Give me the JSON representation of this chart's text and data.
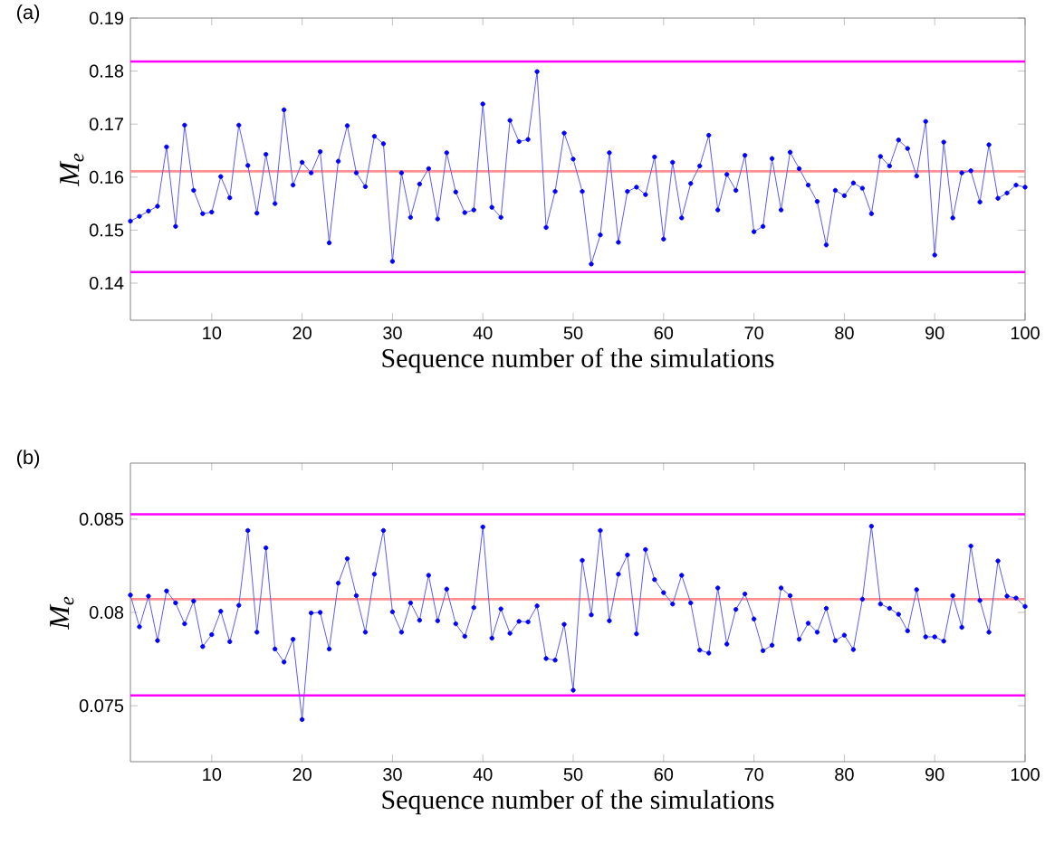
{
  "chart_data": [
    {
      "type": "line",
      "title": "(a)",
      "xlabel": "Sequence number of the simulations",
      "ylabel": "M$_{e}$",
      "marker": "circle",
      "line_style": "solid",
      "grid": false,
      "x": [
        1,
        2,
        3,
        4,
        5,
        6,
        7,
        8,
        9,
        10,
        11,
        12,
        13,
        14,
        15,
        16,
        17,
        18,
        19,
        20,
        21,
        22,
        23,
        24,
        25,
        26,
        27,
        28,
        29,
        30,
        31,
        32,
        33,
        34,
        35,
        36,
        37,
        38,
        39,
        40,
        41,
        42,
        43,
        44,
        45,
        46,
        47,
        48,
        49,
        50,
        51,
        52,
        53,
        54,
        55,
        56,
        57,
        58,
        59,
        60,
        61,
        62,
        63,
        64,
        65,
        66,
        67,
        68,
        69,
        70,
        71,
        72,
        73,
        74,
        75,
        76,
        77,
        78,
        79,
        80,
        81,
        82,
        83,
        84,
        85,
        86,
        87,
        88,
        89,
        90,
        91,
        92,
        93,
        94,
        95,
        96,
        97,
        98,
        99,
        100
      ],
      "series": [
        {
          "color": "#0000ff",
          "values": [
            0.1517,
            0.1526,
            0.1536,
            0.1545,
            0.1657,
            0.1507,
            0.1698,
            0.1575,
            0.1531,
            0.1534,
            0.1601,
            0.1561,
            0.1698,
            0.1622,
            0.1532,
            0.1643,
            0.155,
            0.1727,
            0.1585,
            0.1628,
            0.1608,
            0.1648,
            0.1476,
            0.163,
            0.1697,
            0.1608,
            0.1582,
            0.1677,
            0.1663,
            0.1441,
            0.1608,
            0.1524,
            0.1587,
            0.1616,
            0.1521,
            0.1646,
            0.1572,
            0.1533,
            0.1538,
            0.1738,
            0.1543,
            0.1524,
            0.1707,
            0.1667,
            0.1671,
            0.1799,
            0.1505,
            0.1573,
            0.1683,
            0.1634,
            0.1573,
            0.1436,
            0.1491,
            0.1646,
            0.1477,
            0.1573,
            0.1581,
            0.1567,
            0.1638,
            0.1483,
            0.1628,
            0.1523,
            0.1588,
            0.1621,
            0.1679,
            0.1538,
            0.1605,
            0.1575,
            0.1641,
            0.1497,
            0.1507,
            0.1635,
            0.1538,
            0.1647,
            0.1616,
            0.1585,
            0.1554,
            0.1472,
            0.1575,
            0.1565,
            0.1589,
            0.1579,
            0.1531,
            0.1639,
            0.1621,
            0.167,
            0.1654,
            0.1602,
            0.1705,
            0.1453,
            0.1666,
            0.1523,
            0.1608,
            0.1612,
            0.1553,
            0.1661,
            0.156,
            0.157,
            0.1585,
            0.1581
          ]
        }
      ],
      "ref_lines": [
        {
          "axis": "y",
          "value": 0.1818,
          "color": "#ff00ff"
        },
        {
          "axis": "y",
          "value": 0.1611,
          "color": "#ff9090"
        },
        {
          "axis": "y",
          "value": 0.1421,
          "color": "#ff00ff"
        }
      ],
      "xlim": [
        1,
        100
      ],
      "xticks": [
        10,
        20,
        30,
        40,
        50,
        60,
        70,
        80,
        90,
        100
      ],
      "ylim": [
        0.133,
        0.19
      ],
      "yticks": [
        0.14,
        0.15,
        0.16,
        0.17,
        0.18,
        0.19
      ]
    },
    {
      "type": "line",
      "title": "(b)",
      "xlabel": "Sequence number of the simulations",
      "ylabel": "M$_{e}$",
      "marker": "circle",
      "line_style": "solid",
      "grid": false,
      "x": [
        1,
        2,
        3,
        4,
        5,
        6,
        7,
        8,
        9,
        10,
        11,
        12,
        13,
        14,
        15,
        16,
        17,
        18,
        19,
        20,
        21,
        22,
        23,
        24,
        25,
        26,
        27,
        28,
        29,
        30,
        31,
        32,
        33,
        34,
        35,
        36,
        37,
        38,
        39,
        40,
        41,
        42,
        43,
        44,
        45,
        46,
        47,
        48,
        49,
        50,
        51,
        52,
        53,
        54,
        55,
        56,
        57,
        58,
        59,
        60,
        61,
        62,
        63,
        64,
        65,
        66,
        67,
        68,
        69,
        70,
        71,
        72,
        73,
        74,
        75,
        76,
        77,
        78,
        79,
        80,
        81,
        82,
        83,
        84,
        85,
        86,
        87,
        88,
        89,
        90,
        91,
        92,
        93,
        94,
        95,
        96,
        97,
        98,
        99,
        100
      ],
      "series": [
        {
          "color": "#0000ff",
          "values": [
            0.08093,
            0.07923,
            0.08087,
            0.07849,
            0.08115,
            0.08051,
            0.07939,
            0.08061,
            0.07817,
            0.07881,
            0.08006,
            0.07843,
            0.08038,
            0.08439,
            0.07894,
            0.08346,
            0.07804,
            0.07734,
            0.07856,
            0.07426,
            0.07997,
            0.08,
            0.07804,
            0.08157,
            0.08288,
            0.0809,
            0.07894,
            0.08205,
            0.08439,
            0.08003,
            0.07894,
            0.08051,
            0.07958,
            0.08199,
            0.07955,
            0.08125,
            0.07939,
            0.07872,
            0.08026,
            0.08458,
            0.07862,
            0.08019,
            0.07888,
            0.07952,
            0.07949,
            0.08035,
            0.07753,
            0.07744,
            0.07936,
            0.07583,
            0.08279,
            0.07987,
            0.08439,
            0.07955,
            0.08205,
            0.08308,
            0.07885,
            0.08337,
            0.08176,
            0.08106,
            0.08045,
            0.08199,
            0.08051,
            0.07798,
            0.07782,
            0.08131,
            0.0783,
            0.08016,
            0.08099,
            0.07965,
            0.07795,
            0.07824,
            0.08131,
            0.0809,
            0.07856,
            0.07942,
            0.07894,
            0.08022,
            0.07849,
            0.07878,
            0.07801,
            0.08071,
            0.08462,
            0.08045,
            0.08022,
            0.0799,
            0.07901,
            0.08122,
            0.07869,
            0.07869,
            0.07846,
            0.0809,
            0.0792,
            0.08356,
            0.08064,
            0.07894,
            0.08276,
            0.08087,
            0.08077,
            0.08032
          ]
        }
      ],
      "ref_lines": [
        {
          "axis": "y",
          "value": 0.08526,
          "color": "#ff00ff"
        },
        {
          "axis": "y",
          "value": 0.08071,
          "color": "#ff9090"
        },
        {
          "axis": "y",
          "value": 0.07555,
          "color": "#ff00ff"
        }
      ],
      "xlim": [
        1,
        100
      ],
      "xticks": [
        10,
        20,
        30,
        40,
        50,
        60,
        70,
        80,
        90,
        100
      ],
      "ylim": [
        0.072,
        0.088
      ],
      "yticks": [
        0.075,
        0.08,
        0.085
      ]
    }
  ]
}
